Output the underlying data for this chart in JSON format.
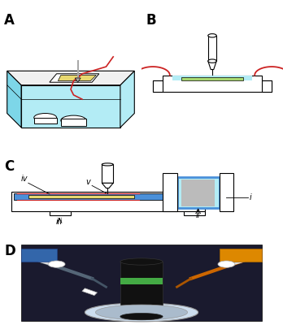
{
  "panel_labels": [
    "A",
    "B",
    "C",
    "D"
  ],
  "panel_label_fontsize": 12,
  "panel_label_fontweight": "bold",
  "background_color": "#ffffff",
  "cyan_water": "#b3ecf5",
  "cyan_water_dark": "#7dd6e8",
  "blue_chamber": "#4a90d9",
  "blue_dark": "#2255aa",
  "green_tissue": "#a8d870",
  "yellow_tissue": "#e8d870",
  "red_color": "#cc2222",
  "gray_color": "#bbbbbb",
  "black_color": "#000000",
  "white_color": "#ffffff"
}
